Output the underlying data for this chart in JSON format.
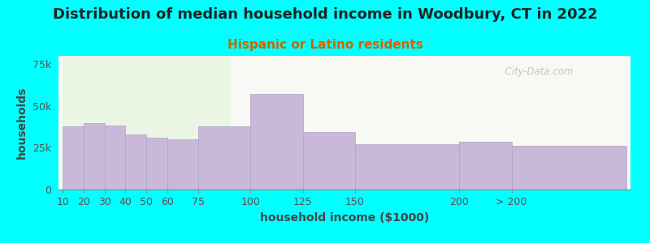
{
  "title": "Distribution of median household income in Woodbury, CT in 2022",
  "subtitle": "Hispanic or Latino residents",
  "xlabel": "household income ($1000)",
  "ylabel": "households",
  "background_color": "#00FFFF",
  "plot_bg_left": "#eaf5e4",
  "plot_bg_right": "#f8f8f5",
  "bar_color": "#c9b8d8",
  "bar_edge_color": "#b0a0c8",
  "bar_left_edges": [
    10,
    20,
    30,
    40,
    50,
    60,
    75,
    100,
    125,
    150,
    200,
    225
  ],
  "bar_widths": [
    10,
    10,
    10,
    10,
    10,
    15,
    25,
    25,
    25,
    50,
    25,
    55
  ],
  "values": [
    38000,
    40000,
    38500,
    33000,
    31000,
    30000,
    38000,
    57000,
    34500,
    27000,
    28500,
    26000
  ],
  "ylim": [
    0,
    80000
  ],
  "yticks": [
    0,
    25000,
    50000,
    75000
  ],
  "ytick_labels": [
    "0",
    "25k",
    "50k",
    "75k"
  ],
  "xtick_positions": [
    10,
    20,
    30,
    40,
    50,
    60,
    75,
    100,
    125,
    150,
    200,
    225
  ],
  "xtick_labels": [
    "10",
    "20",
    "30",
    "40",
    "50",
    "60",
    "75",
    "100",
    "125",
    "150",
    "200",
    "> 200"
  ],
  "left_bg_end_x": 90,
  "title_fontsize": 13,
  "subtitle_fontsize": 11,
  "axis_label_fontsize": 10,
  "tick_fontsize": 9,
  "watermark": "  City-Data.com"
}
